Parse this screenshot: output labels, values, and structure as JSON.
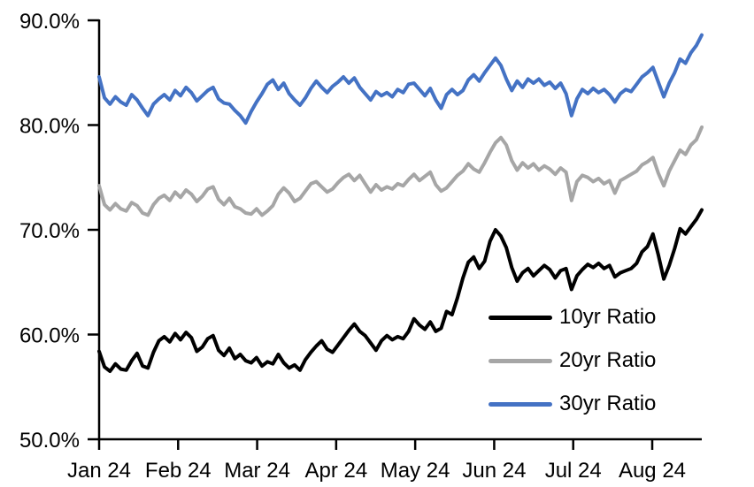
{
  "chart_data": {
    "type": "line",
    "title": "",
    "xlabel": "",
    "ylabel": "",
    "grid": false,
    "legend_position": "inside-lower-right",
    "ylim": [
      50,
      90
    ],
    "y_tick_step": 10,
    "y_tick_labels": [
      "50.0%",
      "60.0%",
      "70.0%",
      "80.0%",
      "90.0%"
    ],
    "x_tick_labels": [
      "Jan 24",
      "Feb 24",
      "Mar 24",
      "Apr 24",
      "May 24",
      "Jun 24",
      "Jul 24",
      "Aug 24"
    ],
    "axis_color": "#000000",
    "series": [
      {
        "name": "10yr Ratio",
        "color": "#000000",
        "values": [
          58.4,
          56.9,
          56.5,
          57.2,
          56.7,
          56.6,
          57.5,
          58.2,
          57.0,
          56.8,
          58.3,
          59.4,
          59.8,
          59.3,
          60.1,
          59.5,
          60.2,
          59.7,
          58.4,
          58.8,
          59.6,
          59.9,
          58.5,
          58.0,
          58.7,
          57.7,
          58.1,
          57.5,
          57.3,
          57.8,
          57.0,
          57.4,
          57.2,
          58.1,
          57.3,
          56.8,
          57.1,
          56.6,
          57.6,
          58.3,
          58.9,
          59.4,
          58.6,
          58.3,
          59.0,
          59.7,
          60.4,
          61.0,
          60.3,
          59.9,
          59.2,
          58.5,
          59.4,
          59.9,
          59.5,
          59.8,
          59.6,
          60.3,
          61.5,
          60.9,
          60.5,
          61.2,
          60.3,
          60.6,
          62.2,
          61.9,
          63.5,
          65.4,
          66.9,
          67.4,
          66.3,
          67.0,
          68.9,
          70.0,
          69.4,
          68.3,
          66.4,
          65.1,
          65.9,
          66.3,
          65.6,
          66.1,
          66.6,
          66.2,
          65.4,
          66.1,
          66.3,
          64.3,
          65.6,
          66.2,
          66.7,
          66.4,
          66.8,
          66.3,
          66.6,
          65.5,
          65.9,
          66.1,
          66.3,
          66.8,
          67.9,
          68.4,
          69.6,
          67.6,
          65.3,
          66.6,
          68.2,
          70.1,
          69.6,
          70.3,
          71.0,
          71.9
        ]
      },
      {
        "name": "20yr Ratio",
        "color": "#A6A6A6",
        "values": [
          74.2,
          72.4,
          71.9,
          72.5,
          72.0,
          71.8,
          72.6,
          72.3,
          71.6,
          71.4,
          72.4,
          73.0,
          73.3,
          72.8,
          73.6,
          73.1,
          73.8,
          73.4,
          72.7,
          73.2,
          73.9,
          74.1,
          72.9,
          72.4,
          73.0,
          72.2,
          72.0,
          71.6,
          71.5,
          72.0,
          71.4,
          71.8,
          72.3,
          73.4,
          74.0,
          73.5,
          72.7,
          73.0,
          73.7,
          74.4,
          74.6,
          74.1,
          73.6,
          73.9,
          74.5,
          75.0,
          75.3,
          74.7,
          75.2,
          74.4,
          73.6,
          74.3,
          73.8,
          74.1,
          73.9,
          74.4,
          74.2,
          74.8,
          75.3,
          74.7,
          75.1,
          75.5,
          74.3,
          73.7,
          74.0,
          74.6,
          75.2,
          75.6,
          76.3,
          75.8,
          75.5,
          76.4,
          77.4,
          78.3,
          78.8,
          78.1,
          76.6,
          75.7,
          76.4,
          75.9,
          76.3,
          75.7,
          76.1,
          75.8,
          75.3,
          75.9,
          75.5,
          72.8,
          74.6,
          75.2,
          75.0,
          74.6,
          74.9,
          74.4,
          74.7,
          73.5,
          74.7,
          75.0,
          75.3,
          75.6,
          76.2,
          76.5,
          76.9,
          75.4,
          74.2,
          75.6,
          76.6,
          77.6,
          77.2,
          78.1,
          78.6,
          79.8
        ]
      },
      {
        "name": "30yr Ratio",
        "color": "#4472C4",
        "values": [
          84.6,
          82.6,
          82.0,
          82.7,
          82.2,
          81.9,
          82.9,
          82.4,
          81.6,
          80.9,
          82.0,
          82.5,
          82.9,
          82.4,
          83.3,
          82.8,
          83.6,
          83.1,
          82.3,
          82.8,
          83.3,
          83.6,
          82.5,
          82.1,
          82.0,
          81.4,
          80.9,
          80.2,
          81.3,
          82.2,
          83.0,
          83.9,
          84.3,
          83.4,
          84.0,
          83.0,
          82.4,
          81.9,
          82.6,
          83.5,
          84.2,
          83.6,
          83.1,
          83.7,
          84.1,
          84.6,
          84.0,
          84.5,
          83.6,
          83.0,
          82.4,
          83.2,
          82.8,
          83.1,
          82.7,
          83.4,
          83.1,
          83.9,
          84.0,
          83.4,
          82.8,
          83.5,
          82.4,
          81.6,
          82.9,
          83.4,
          82.9,
          83.3,
          84.3,
          84.8,
          84.2,
          85.0,
          85.7,
          86.4,
          85.7,
          84.4,
          83.3,
          84.2,
          83.6,
          84.4,
          84.0,
          84.4,
          83.8,
          84.1,
          83.5,
          84.0,
          83.0,
          80.9,
          82.5,
          83.4,
          83.0,
          83.5,
          83.1,
          83.4,
          82.9,
          82.2,
          83.0,
          83.4,
          83.2,
          83.9,
          84.6,
          85.0,
          85.5,
          84.1,
          82.7,
          84.0,
          85.0,
          86.3,
          85.9,
          86.9,
          87.6,
          88.6
        ]
      }
    ]
  }
}
